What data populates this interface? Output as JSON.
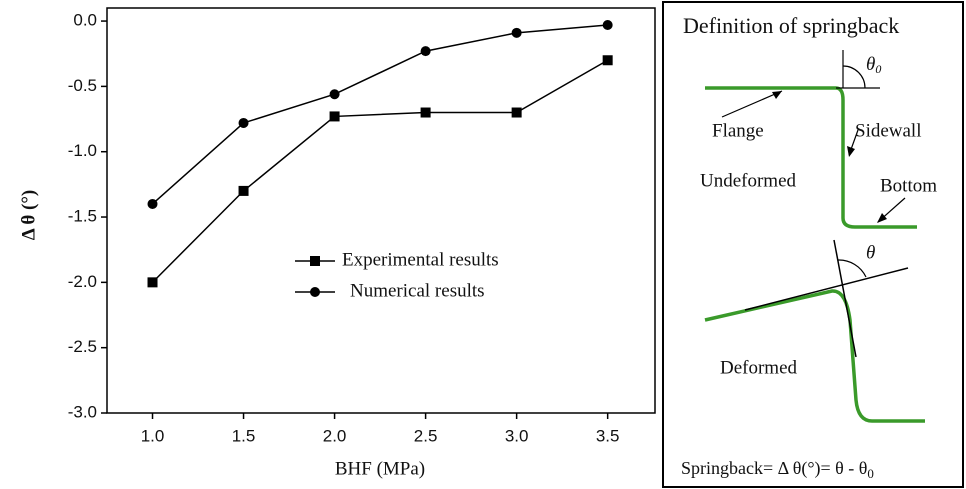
{
  "chart_data": {
    "type": "line",
    "x_label": "BHF (MPa)",
    "y_label": "Δ θ (°)",
    "x": [
      1.0,
      1.5,
      2.0,
      2.5,
      3.0,
      3.5
    ],
    "series": [
      {
        "name": "Experimental results",
        "color": "#000000",
        "marker": "square",
        "values": [
          -2.0,
          -1.3,
          -0.73,
          -0.7,
          -0.7,
          -0.3
        ]
      },
      {
        "name": "Numerical results",
        "color": "#000000",
        "marker": "circle",
        "values": [
          -1.4,
          -0.78,
          -0.56,
          -0.23,
          -0.09,
          -0.03
        ]
      }
    ],
    "xlim": [
      0.75,
      3.76
    ],
    "ylim": [
      -3.0,
      0.1
    ],
    "xticks": [
      {
        "value": 1.0,
        "label": "1.0"
      },
      1.5,
      {
        "value": 2.0,
        "label": "2.0"
      },
      2.5,
      {
        "value": 3.0,
        "label": "3.0"
      },
      3.5
    ],
    "yticks": [
      {
        "value": 0,
        "label": "0.0"
      },
      -0.5,
      {
        "value": -1.0,
        "label": "-1.0"
      },
      -1.5,
      {
        "value": -2.0,
        "label": "-2.0"
      },
      -2.5,
      {
        "value": -3.0,
        "label": "-3.0"
      }
    ],
    "grid": false
  },
  "diagram": {
    "title": "Definition of springback",
    "theta0": {
      "symbol": "θ",
      "subscript": "0"
    },
    "flange": "Flange",
    "sidewall": "Sidewall",
    "undeformed": "Undeformed",
    "bottom": "Bottom",
    "theta": "θ",
    "deformed": "Deformed",
    "formula": {
      "text": "Springback= Δ  θ(°)= θ - θ",
      "subscript": "0"
    }
  }
}
